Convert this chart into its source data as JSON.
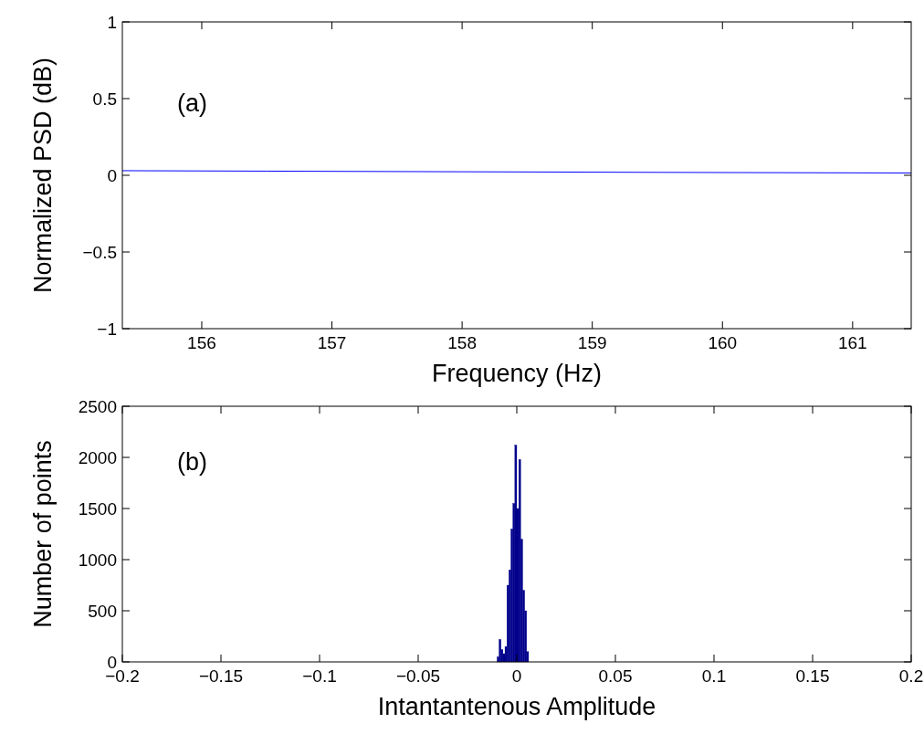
{
  "chart_data": [
    {
      "type": "line",
      "xlabel": "Frequency (Hz)",
      "ylabel": "Normalized PSD (dB)",
      "annotations": [
        "(a)"
      ],
      "xlim": [
        155.39,
        161.45
      ],
      "ylim": [
        -1,
        1
      ],
      "xticks": [
        156,
        157,
        158,
        159,
        160,
        161
      ],
      "yticks": [
        {
          "value": -1,
          "label": "−1"
        },
        {
          "value": -0.5,
          "label": "−0.5"
        },
        0,
        0.5,
        1
      ],
      "grid": false,
      "series": [
        {
          "color": "#0000ff",
          "x": [
            155.39,
            156.5,
            158,
            159.5,
            161.45
          ],
          "values": [
            0.03,
            0.027,
            0.023,
            0.019,
            0.015
          ]
        }
      ]
    },
    {
      "type": "histogram",
      "xlabel": "Intantantenous Amplitude",
      "ylabel": "Number of points",
      "annotations": [
        "(b)"
      ],
      "xlim": [
        -0.2,
        0.2
      ],
      "ylim": [
        0,
        2500
      ],
      "xticks": [
        {
          "value": -0.2,
          "label": "−0.2"
        },
        {
          "value": -0.15,
          "label": "−0.15"
        },
        {
          "value": -0.1,
          "label": "−0.1"
        },
        {
          "value": -0.05,
          "label": "−0.05"
        },
        0,
        0.05,
        0.1,
        0.15,
        0.2
      ],
      "yticks": [
        0,
        500,
        1000,
        1500,
        2000,
        2500
      ],
      "grid": false,
      "bins": [
        -0.01,
        -0.009,
        -0.008,
        -0.007,
        -0.006,
        -0.005,
        -0.004,
        -0.003,
        -0.002,
        -0.001,
        0,
        0.001,
        0.002,
        0.003,
        0.004,
        0.005,
        0.006
      ],
      "color": "#00008b",
      "values": [
        50,
        220,
        120,
        80,
        150,
        750,
        900,
        1300,
        1550,
        2120,
        1500,
        1980,
        1200,
        700,
        500,
        100
      ]
    }
  ]
}
